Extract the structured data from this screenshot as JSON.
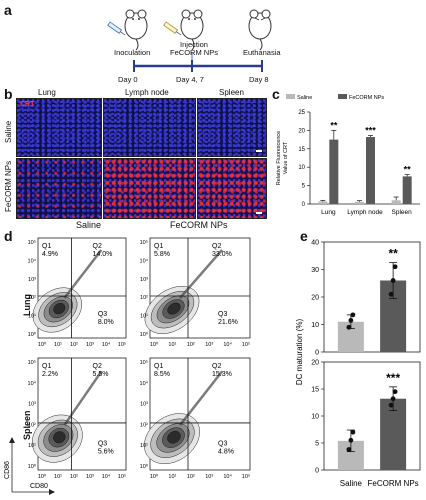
{
  "panels": {
    "a": "a",
    "b": "b",
    "c": "c",
    "d": "d",
    "e": "e"
  },
  "timeline": {
    "events": [
      {
        "label": "Inoculation",
        "day": "Day 0"
      },
      {
        "label": "Injection\nFeCORM NPs",
        "day": "Day 4, 7"
      },
      {
        "label": "Euthanasia",
        "day": "Day 8"
      }
    ]
  },
  "microscopy": {
    "columns": [
      "Lung",
      "Lymph node",
      "Spleen"
    ],
    "rows": [
      "Saline",
      "FeCORM NPs"
    ],
    "stain_label": "CRT",
    "bottom_labels": [
      "Saline",
      "FeCORM NPs"
    ]
  },
  "chart_data": [
    {
      "id": "c",
      "type": "bar",
      "ylabel": "Relative Fluorescence\nValue of CRT",
      "ylim": [
        0,
        25
      ],
      "yticks": [
        "0",
        "5",
        "10",
        "15",
        "20",
        "25"
      ],
      "categories": [
        "Lung",
        "Lymph node",
        "Spleen"
      ],
      "legend_position": "top",
      "series": [
        {
          "name": "Saline",
          "color": "#b9b9b9",
          "values": [
            0.7,
            0.6,
            1.0
          ],
          "errors": [
            0.3,
            0.3,
            0.9
          ]
        },
        {
          "name": "FeCORM NPs",
          "color": "#5a5a5a",
          "values": [
            17.5,
            18.2,
            7.5
          ],
          "errors": [
            2.5,
            0.4,
            0.5
          ]
        }
      ],
      "significance": [
        "**",
        "***",
        "**"
      ]
    },
    {
      "id": "e-top",
      "type": "bar",
      "ylabel": "DC maturation (%)",
      "ylim": [
        0,
        40
      ],
      "yticks": [
        "0",
        "10",
        "20",
        "30",
        "40"
      ],
      "categories": [
        "Saline",
        "FeCORM NPs"
      ],
      "values": [
        11,
        26
      ],
      "errors": [
        2.5,
        6.5
      ],
      "points": [
        [
          9,
          11.5,
          13.5
        ],
        [
          21,
          26,
          31
        ]
      ],
      "colors": [
        "#b9b9b9",
        "#5a5a5a"
      ],
      "significance": [
        "",
        "**"
      ]
    },
    {
      "id": "e-bottom",
      "type": "bar",
      "ylim": [
        0,
        20
      ],
      "yticks": [
        "0",
        "5",
        "10",
        "15",
        "20"
      ],
      "categories": [
        "Saline",
        "FeCORM NPs"
      ],
      "values": [
        5.4,
        13.2
      ],
      "errors": [
        2.0,
        2.2
      ],
      "points": [
        [
          3.8,
          5.5,
          7.0
        ],
        [
          12.0,
          13.2,
          14.5
        ]
      ],
      "colors": [
        "#b9b9b9",
        "#5a5a5a"
      ],
      "significance": [
        "",
        "***"
      ]
    }
  ],
  "flow": {
    "col_titles": [
      "Saline",
      "FeCORM NPs"
    ],
    "row_titles": [
      "Lung",
      "Spleen"
    ],
    "plots": [
      {
        "q1": "Q1\n4.9%",
        "q2": "Q2\n14.0%",
        "q3": "Q3\n8.0%"
      },
      {
        "q1": "Q1\n5.8%",
        "q2": "Q2\n33.0%",
        "q3": "Q3\n21.6%"
      },
      {
        "q1": "Q1\n2.2%",
        "q2": "Q2\n5.5%",
        "q3": "Q3\n5.6%"
      },
      {
        "q1": "Q1\n8.5%",
        "q2": "Q2\n15.3%",
        "q3": "Q3\n4.8%"
      }
    ],
    "ticks": [
      "10⁰",
      "10¹",
      "10²",
      "10³",
      "10⁴",
      "10⁵"
    ],
    "x_axis": "CD80",
    "y_axis": "CD86"
  }
}
